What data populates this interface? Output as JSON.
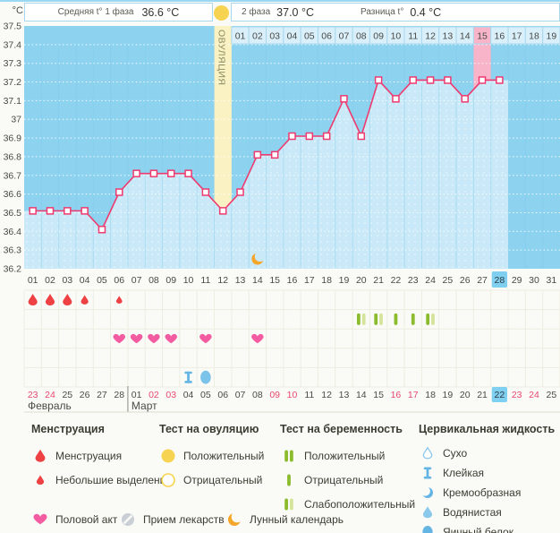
{
  "header": {
    "unit_label": "°C",
    "phase1_label": "Средняя t° 1 фаза",
    "phase1_value": "36.6 °C",
    "phase2_label": "2 фаза",
    "phase2_value": "37.0 °C",
    "diff_label": "Разница t°",
    "diff_value": "0.4 °C"
  },
  "chart_data": {
    "type": "line",
    "ylabel": "°C",
    "ylim": [
      36.2,
      37.5
    ],
    "ytick_labels": [
      "37.5",
      "37.4",
      "37.3",
      "37.2",
      "37.1",
      "37",
      "36.9",
      "36.8",
      "36.7",
      "36.6",
      "36.5",
      "36.4",
      "36.3",
      "36.2"
    ],
    "days_in_cycle_row": 31,
    "x": [
      1,
      2,
      3,
      4,
      5,
      6,
      7,
      8,
      9,
      10,
      11,
      12,
      13,
      14,
      15,
      16,
      17,
      18,
      19,
      20,
      21,
      22,
      23,
      24,
      25,
      26,
      27,
      28
    ],
    "series": [
      {
        "name": "temperature",
        "values": [
          36.51,
          36.51,
          36.51,
          36.51,
          36.41,
          36.61,
          36.71,
          36.71,
          36.71,
          36.71,
          36.61,
          36.51,
          36.61,
          36.81,
          36.81,
          36.91,
          36.91,
          36.91,
          37.11,
          36.91,
          37.21,
          37.11,
          37.21,
          37.21,
          37.21,
          37.11,
          37.21,
          37.21
        ]
      }
    ],
    "ovulation_day": 12,
    "ovulation_label": "ОВУЛЯЦИЯ",
    "phase2_start_day": 13,
    "phase2_day_labels": [
      "01",
      "02",
      "03",
      "04",
      "05",
      "06",
      "07",
      "08",
      "09",
      "10",
      "11",
      "12",
      "13",
      "14",
      "15",
      "16",
      "17",
      "18",
      "19"
    ],
    "phase2_pink_label": "15",
    "expected_period_cycle_day": 27,
    "today_cycle_day": 28,
    "moon_icon_day": 14,
    "legend_position": "bottom"
  },
  "cycle_day_row": {
    "days": [
      "01",
      "02",
      "03",
      "04",
      "05",
      "06",
      "07",
      "08",
      "09",
      "10",
      "11",
      "12",
      "13",
      "14",
      "15",
      "16",
      "17",
      "18",
      "19",
      "20",
      "21",
      "22",
      "23",
      "24",
      "25",
      "26",
      "27",
      "28",
      "29",
      "30",
      "31"
    ],
    "today": "28"
  },
  "symbols": {
    "menstruation": [
      {
        "day": 1,
        "size": "large"
      },
      {
        "day": 2,
        "size": "large"
      },
      {
        "day": 3,
        "size": "large"
      },
      {
        "day": 4,
        "size": "medium"
      },
      {
        "day": 6,
        "size": "small"
      }
    ],
    "pregnancy_tests": [
      {
        "day": 20,
        "result": "weak_positive"
      },
      {
        "day": 21,
        "result": "weak_positive"
      },
      {
        "day": 22,
        "result": "negative"
      },
      {
        "day": 23,
        "result": "negative"
      },
      {
        "day": 24,
        "result": "weak_positive"
      }
    ],
    "intercourse_days": [
      6,
      7,
      8,
      9,
      11,
      14
    ],
    "cervical_fluid": [
      {
        "day": 10,
        "type": "sticky"
      },
      {
        "day": 11,
        "type": "egg_white"
      }
    ]
  },
  "dates_row": {
    "months": [
      {
        "name": "Февраль",
        "dates": [
          {
            "d": "23",
            "weekend": true
          },
          {
            "d": "24",
            "weekend": true
          },
          {
            "d": "25"
          },
          {
            "d": "26"
          },
          {
            "d": "27"
          },
          {
            "d": "28"
          }
        ]
      },
      {
        "name": "Март",
        "dates": [
          {
            "d": "01"
          },
          {
            "d": "02",
            "weekend": true
          },
          {
            "d": "03",
            "weekend": true
          },
          {
            "d": "04"
          },
          {
            "d": "05"
          },
          {
            "d": "06"
          },
          {
            "d": "07"
          },
          {
            "d": "08"
          },
          {
            "d": "09",
            "weekend": true
          },
          {
            "d": "10",
            "weekend": true
          },
          {
            "d": "11"
          },
          {
            "d": "12"
          },
          {
            "d": "13"
          },
          {
            "d": "14"
          },
          {
            "d": "15"
          },
          {
            "d": "16",
            "weekend": true
          },
          {
            "d": "17",
            "weekend": true
          },
          {
            "d": "18"
          },
          {
            "d": "19"
          },
          {
            "d": "20"
          },
          {
            "d": "21"
          },
          {
            "d": "22",
            "today": true
          },
          {
            "d": "23",
            "weekend": true
          },
          {
            "d": "24",
            "weekend": true
          },
          {
            "d": "25"
          }
        ]
      }
    ]
  },
  "legend": {
    "sections": [
      {
        "title": "Менструация",
        "items": [
          {
            "icon": "drop-large-icon",
            "label": "Менструация"
          },
          {
            "icon": "drop-small-icon",
            "label": "Небольшие выделения"
          }
        ]
      },
      {
        "title": "Тест на овуляцию",
        "items": [
          {
            "icon": "circle-filled-icon",
            "label": "Положительный"
          },
          {
            "icon": "circle-outline-icon",
            "label": "Отрицательный"
          }
        ]
      },
      {
        "title": "Тест на беременность",
        "items": [
          {
            "icon": "bars-positive-icon",
            "label": "Положительный"
          },
          {
            "icon": "bar-negative-icon",
            "label": "Отрицательный"
          },
          {
            "icon": "bars-weak-icon",
            "label": "Слабоположительный"
          }
        ]
      },
      {
        "title": "Цервикальная жидкость",
        "items": [
          {
            "icon": "drop-outline-icon",
            "label": "Сухо"
          },
          {
            "icon": "ibeam-icon",
            "label": "Клейкая"
          },
          {
            "icon": "halfmoon-icon",
            "label": "Кремообразная"
          },
          {
            "icon": "drop-filled-icon",
            "label": "Водянистая"
          },
          {
            "icon": "oval-filled-icon",
            "label": "Яичный белок"
          }
        ]
      }
    ],
    "bottom_items": [
      {
        "icon": "heart-icon",
        "label": "Половой акт"
      },
      {
        "icon": "pill-icon",
        "label": "Прием лекарств"
      },
      {
        "icon": "moon-icon",
        "label": "Лунный календарь"
      }
    ]
  },
  "colors": {
    "chart_bg": "#8DD3F0",
    "area_fill": "#C9E9F8",
    "fill_separator": "#A9DCF2",
    "line": "#EE3A6F",
    "label_cell_bg": "#D9EFFA",
    "label_cell_border": "#A9D8EE",
    "ovulation_column": "#FBF2C3",
    "ovulation_yellow": "#F6D351",
    "expected_period_pink": "#F8B4C9",
    "today_highlight": "#7ECFF0",
    "menstruation_red": "#EE4144",
    "heart_pink": "#F45CA2",
    "test_green_dark": "#8CBB2E",
    "test_green_light": "#D5E49B",
    "cervical_blue": "#64B5E4",
    "moon_orange": "#F5A628",
    "weekend_red": "#E8486F",
    "text_dark": "#4A4A45"
  }
}
